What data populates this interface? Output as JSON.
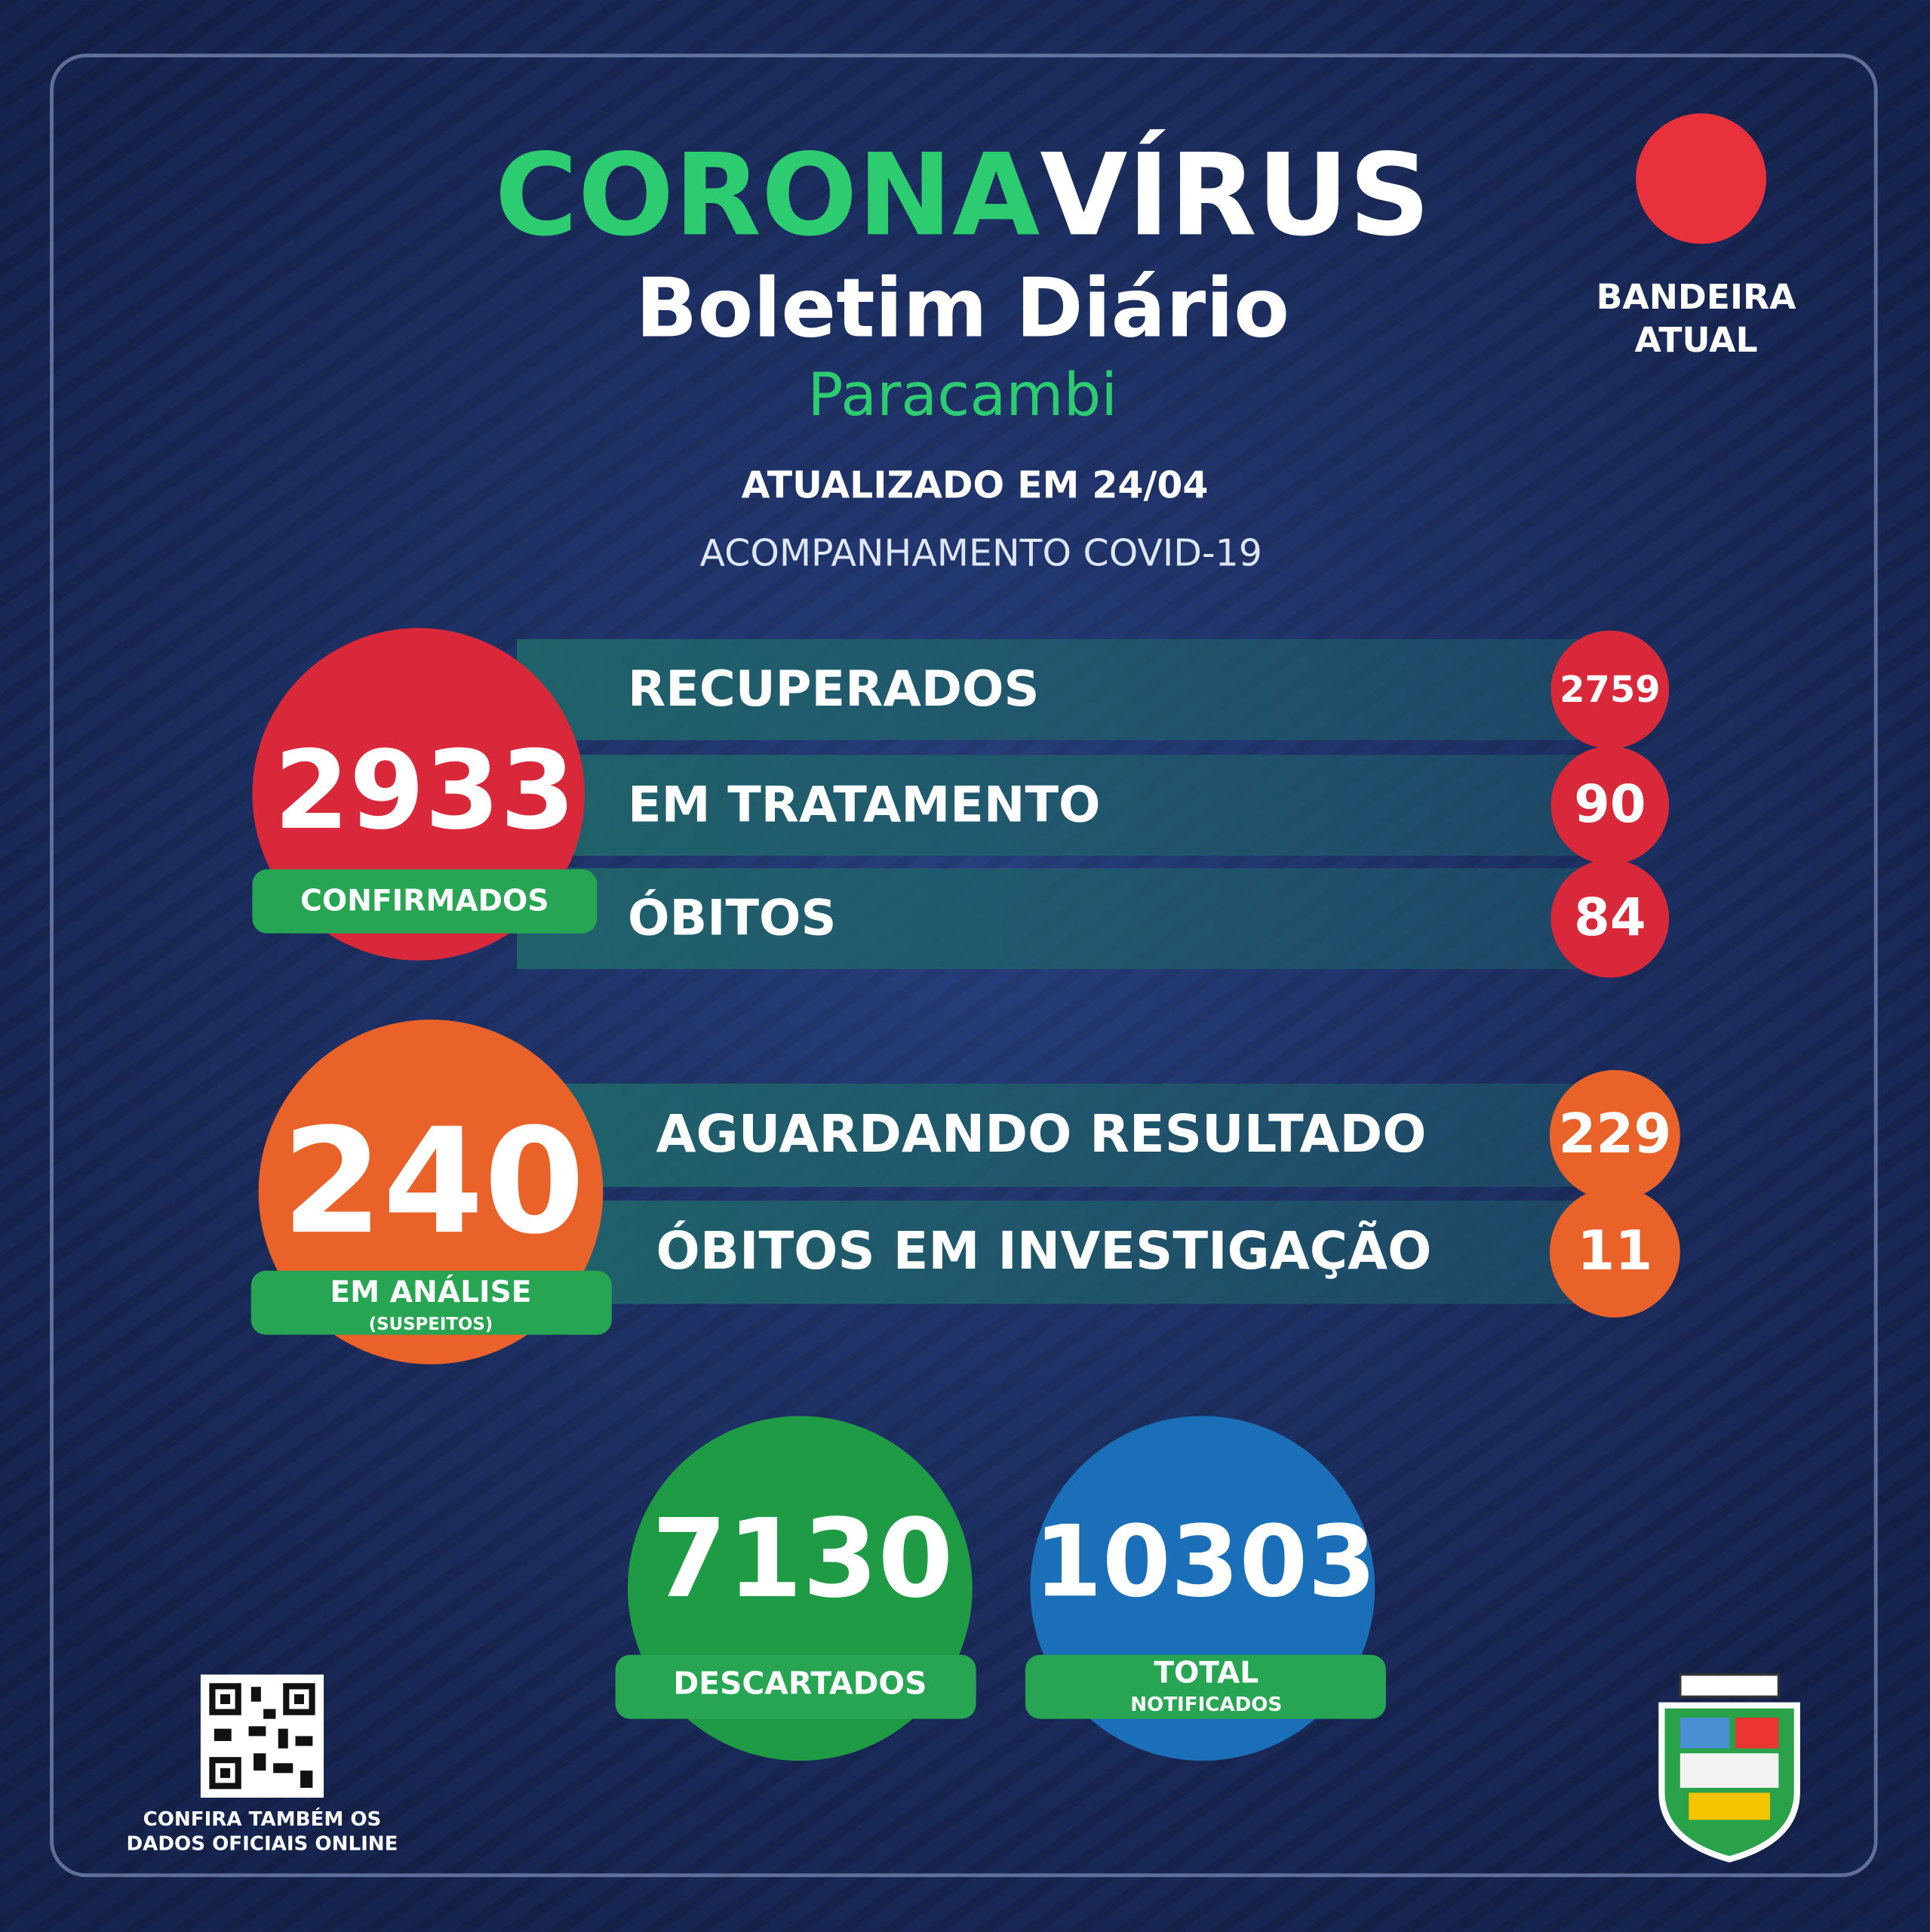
{
  "header": {
    "title_part1": "CORONA",
    "title_part2": "VÍRUS",
    "subtitle": "Boletim Diário",
    "city": "Paracambi",
    "updated": "ATUALIZADO EM 24/04",
    "tracking": "ACOMPANHAMENTO COVID-19"
  },
  "flag": {
    "label_line1": "BANDEIRA",
    "label_line2": "ATUAL"
  },
  "confirmed": {
    "value": 2933,
    "label": "CONFIRMADOS",
    "rows": [
      {
        "label": "RECUPERADOS",
        "value": 2759
      },
      {
        "label": "EM TRATAMENTO",
        "value": 90
      },
      {
        "label": "ÓBITOS",
        "value": 84
      }
    ]
  },
  "analysis": {
    "value": 240,
    "label": "EM ANÁLISE",
    "sublabel": "(SUSPEITOS)",
    "rows": [
      {
        "label": "AGUARDANDO RESULTADO",
        "value": 229
      },
      {
        "label": "ÓBITOS EM INVESTIGAÇÃO",
        "value": 11
      }
    ]
  },
  "discarded": {
    "value": 7130,
    "label": "DESCARTADOS"
  },
  "total": {
    "value": 10303,
    "label": "TOTAL",
    "sublabel": "NOTIFICADOS"
  },
  "footer": {
    "qr_line1": "CONFIRA TAMBÉM OS",
    "qr_line2": "DADOS OFICIAIS ONLINE"
  }
}
